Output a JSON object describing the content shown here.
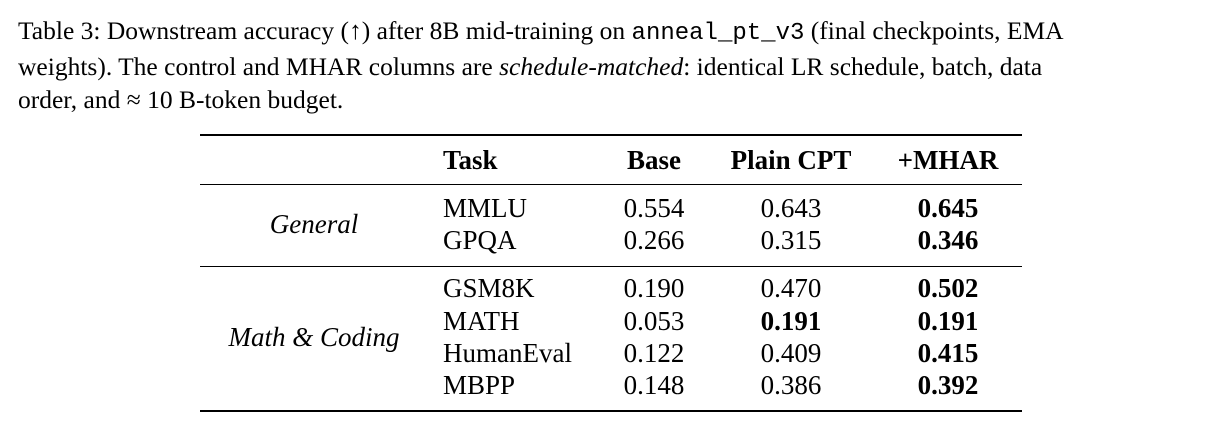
{
  "caption": {
    "part1": "Table 3: Downstream accuracy (↑) after 8B mid-training on ",
    "code": "anneal_pt_v3",
    "part2": " (final checkpoints, EMA",
    "part3": "weights). The control and MHAR columns are ",
    "emph": "schedule-matched",
    "part4": ": identical LR schedule, batch, data",
    "part5": "order, and ≈ 10 B-token budget."
  },
  "table": {
    "headers": {
      "task": "Task",
      "base": "Base",
      "plain_cpt": "Plain CPT",
      "mhar": "+MHAR"
    },
    "groups": [
      {
        "name": "General",
        "rows": [
          {
            "task": "MMLU",
            "base": "0.554",
            "plain_cpt": "0.643",
            "mhar": "0.645",
            "bold": [
              "mhar"
            ]
          },
          {
            "task": "GPQA",
            "base": "0.266",
            "plain_cpt": "0.315",
            "mhar": "0.346",
            "bold": [
              "mhar"
            ]
          }
        ]
      },
      {
        "name": "Math & Coding",
        "rows": [
          {
            "task": "GSM8K",
            "base": "0.190",
            "plain_cpt": "0.470",
            "mhar": "0.502",
            "bold": [
              "mhar"
            ]
          },
          {
            "task": "MATH",
            "base": "0.053",
            "plain_cpt": "0.191",
            "mhar": "0.191",
            "bold": [
              "plain_cpt",
              "mhar"
            ]
          },
          {
            "task": "HumanEval",
            "base": "0.122",
            "plain_cpt": "0.409",
            "mhar": "0.415",
            "bold": [
              "mhar"
            ]
          },
          {
            "task": "MBPP",
            "base": "0.148",
            "plain_cpt": "0.386",
            "mhar": "0.392",
            "bold": [
              "mhar"
            ]
          }
        ]
      }
    ]
  }
}
